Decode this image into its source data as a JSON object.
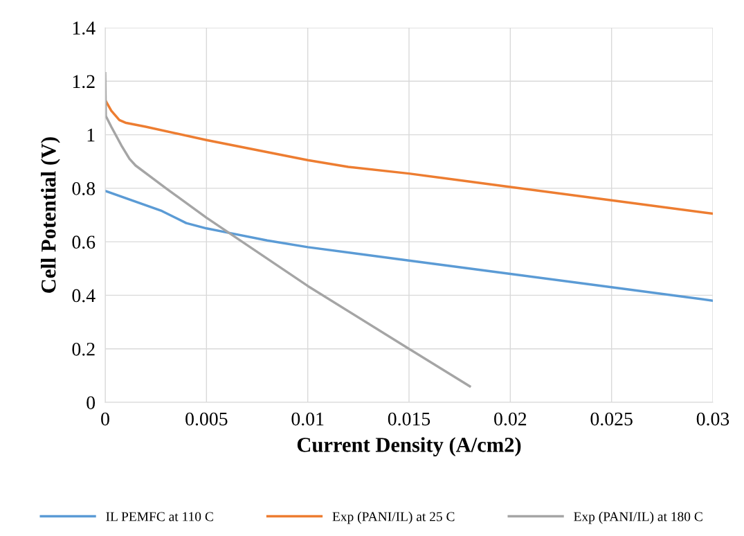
{
  "chart_data": {
    "type": "line",
    "xlabel": "Current Density (A/cm2)",
    "ylabel": "Cell Potential (V)",
    "xlim": [
      0,
      0.03
    ],
    "xticks": [
      0,
      0.005,
      0.01,
      0.015,
      0.02,
      0.025,
      0.03
    ],
    "ylim": [
      0,
      1.4
    ],
    "yticks": [
      0,
      0.2,
      0.4,
      0.6,
      0.8,
      1,
      1.2,
      1.4
    ],
    "grid": true,
    "legend": "bottom",
    "marker": "none",
    "line_style": "solid",
    "series": [
      {
        "name": "IL PEMFC at 110 C",
        "color": "#5b9bd5",
        "x": [
          0,
          0.0028,
          0.004,
          0.005,
          0.006,
          0.008,
          0.01,
          0.015,
          0.02,
          0.025,
          0.03
        ],
        "values": [
          0.79,
          0.715,
          0.67,
          0.65,
          0.635,
          0.605,
          0.58,
          0.53,
          0.48,
          0.43,
          0.38
        ]
      },
      {
        "name": "Exp (PANI/IL) at 25 C",
        "color": "#ed7d31",
        "x": [
          0,
          0.0003,
          0.0007,
          0.001,
          0.002,
          0.005,
          0.01,
          0.012,
          0.015,
          0.02,
          0.025,
          0.03
        ],
        "values": [
          1.13,
          1.09,
          1.055,
          1.045,
          1.03,
          0.98,
          0.905,
          0.88,
          0.855,
          0.805,
          0.755,
          0.705
        ]
      },
      {
        "name": "Exp (PANI/IL) at 180 C",
        "color": "#a5a5a5",
        "x": [
          0,
          3e-05,
          0.0003,
          0.0008,
          0.0012,
          0.0015,
          0.003,
          0.005,
          0.01,
          0.015,
          0.018
        ],
        "values": [
          1.23,
          1.07,
          1.03,
          0.96,
          0.91,
          0.885,
          0.8,
          0.69,
          0.435,
          0.2,
          0.06
        ]
      }
    ]
  }
}
